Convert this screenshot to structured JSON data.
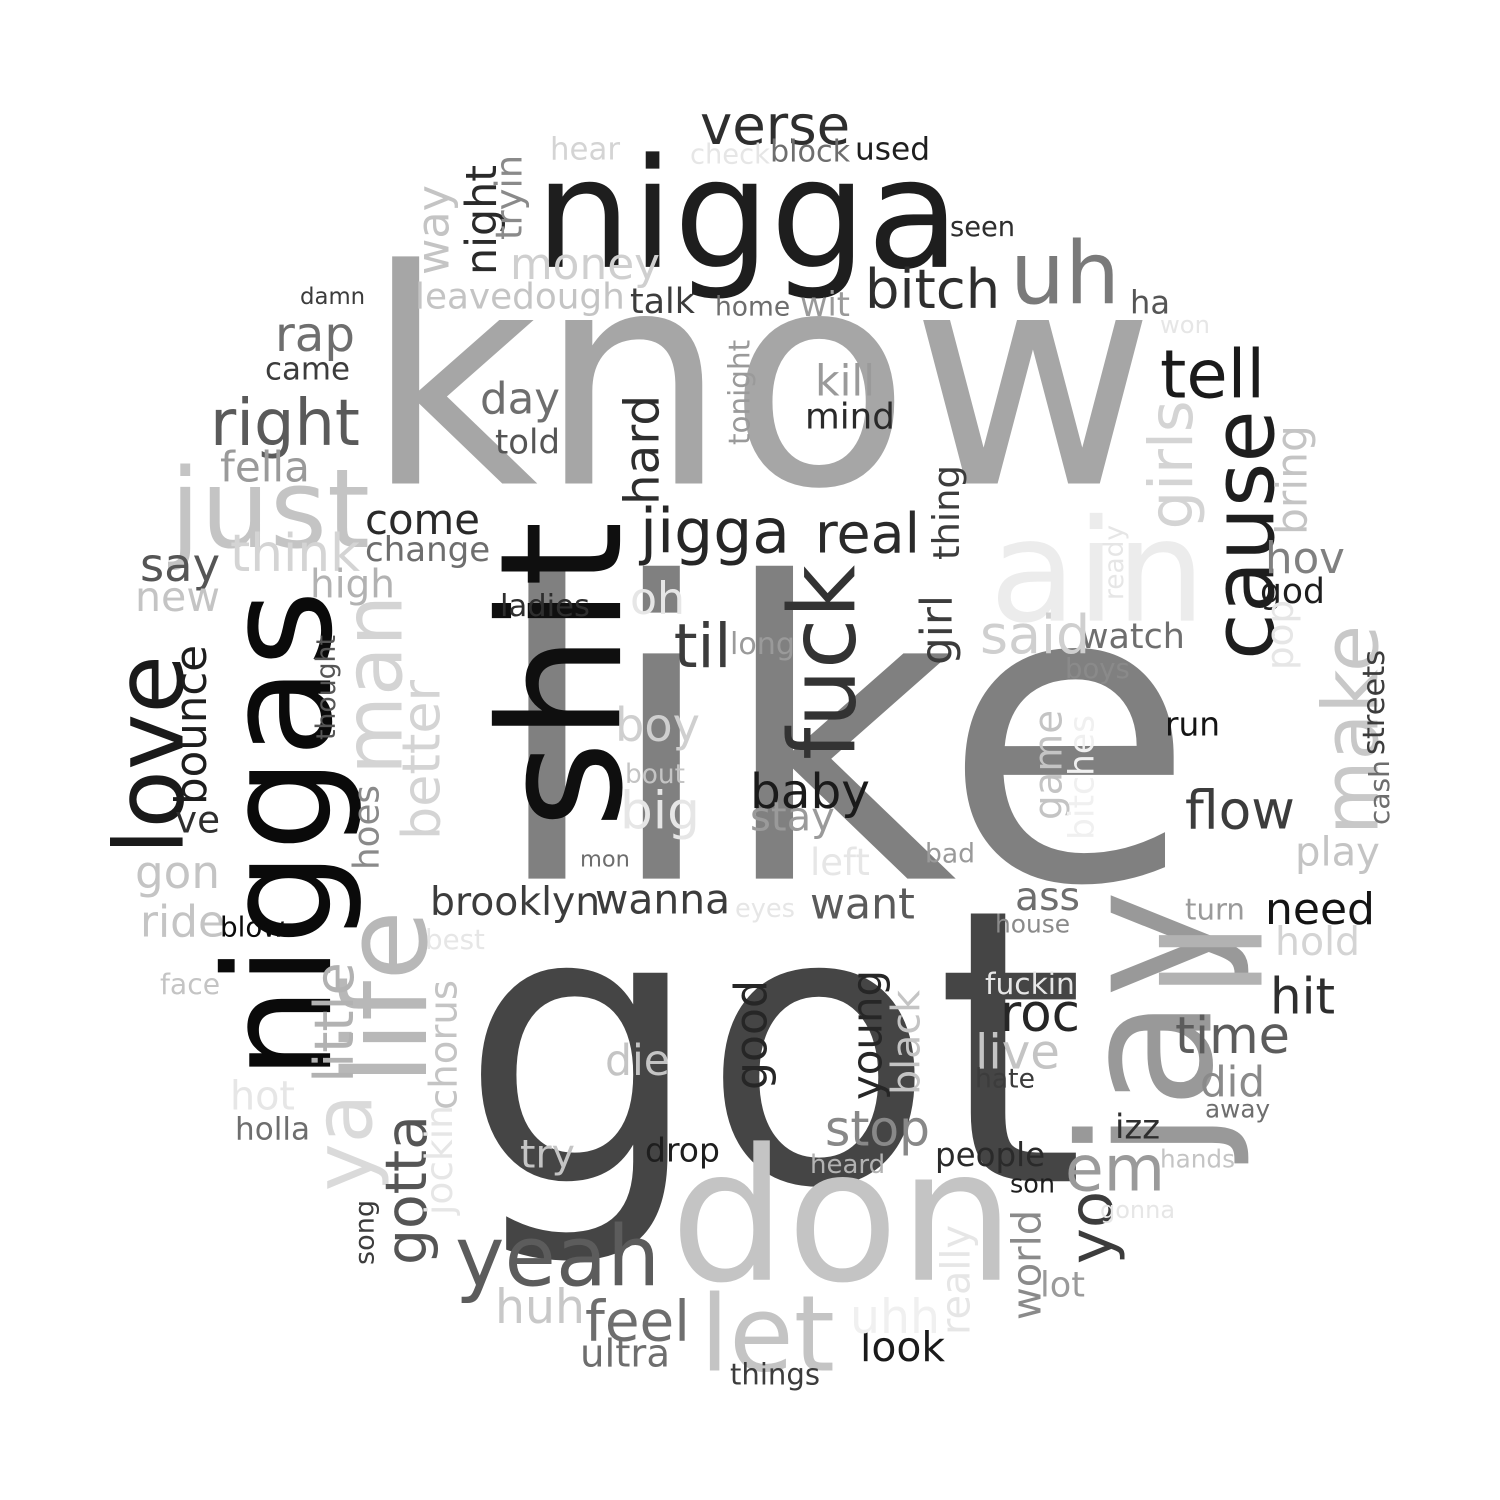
{
  "words": [
    {
      "text": "like",
      "color": "#808080",
      "rotated": false
    },
    {
      "text": "know",
      "color": "#a6a6a6",
      "rotated": false
    },
    {
      "text": "got",
      "color": "#454545",
      "rotated": false
    },
    {
      "text": "don",
      "color": "#c4c4c4",
      "rotated": false
    },
    {
      "text": "nigga",
      "color": "#1e1e1e",
      "rotated": false
    },
    {
      "text": "niggas",
      "color": "#0a0a0a",
      "rotated": true
    },
    {
      "text": "shit",
      "color": "#0f0f0f",
      "rotated": true
    },
    {
      "text": "ain",
      "color": "#ececec",
      "rotated": false
    },
    {
      "text": "jay",
      "color": "#999999",
      "rotated": true
    },
    {
      "text": "uh",
      "color": "#7a7a7a",
      "rotated": false
    },
    {
      "text": "yeah",
      "color": "#5c5c5c",
      "rotated": false
    },
    {
      "text": "just",
      "color": "#c4c4c4",
      "rotated": false
    },
    {
      "text": "fuck",
      "color": "#333333",
      "rotated": true
    },
    {
      "text": "em",
      "color": "#9a9a9a",
      "rotated": false
    },
    {
      "text": "let",
      "color": "#c4c4c4",
      "rotated": false
    },
    {
      "text": "cause",
      "color": "#1e1e1e",
      "rotated": true
    },
    {
      "text": "make",
      "color": "#c8c8c8",
      "rotated": true
    },
    {
      "text": "love",
      "color": "#1a1a1a",
      "rotated": true
    },
    {
      "text": "man",
      "color": "#d4d4d4",
      "rotated": true
    },
    {
      "text": "ya",
      "color": "#dadada",
      "rotated": true
    },
    {
      "text": "life",
      "color": "#b8b8b8",
      "rotated": true
    },
    {
      "text": "ll",
      "color": "#b2b2b2",
      "rotated": true
    },
    {
      "text": "verse",
      "color": "#2e2e2e",
      "rotated": false
    },
    {
      "text": "money",
      "color": "#cfcfcf",
      "rotated": false
    },
    {
      "text": "jigga",
      "color": "#262626",
      "rotated": false
    },
    {
      "text": "bitch",
      "color": "#2e2e2e",
      "rotated": false
    },
    {
      "text": "right",
      "color": "#5a5a5a",
      "rotated": false
    },
    {
      "text": "come",
      "color": "#2a2a2a",
      "rotated": false
    },
    {
      "text": "real",
      "color": "#2a2a2a",
      "rotated": false
    },
    {
      "text": "baby",
      "color": "#1a1a1a",
      "rotated": false
    },
    {
      "text": "time",
      "color": "#5c5c5c",
      "rotated": false
    },
    {
      "text": "tell",
      "color": "#1a1a1a",
      "rotated": false
    },
    {
      "text": "good",
      "color": "#262626",
      "rotated": true
    },
    {
      "text": "flow",
      "color": "#3c3c3c",
      "rotated": false
    },
    {
      "text": "want",
      "color": "#5a5a5a",
      "rotated": false
    },
    {
      "text": "wanna",
      "color": "#3c3c3c",
      "rotated": false
    },
    {
      "text": "need",
      "color": "#141414",
      "rotated": false
    },
    {
      "text": "day",
      "color": "#6e6e6e",
      "rotated": false
    },
    {
      "text": "rap",
      "color": "#6e6e6e",
      "rotated": false
    },
    {
      "text": "hard",
      "color": "#2e2e2e",
      "rotated": true
    },
    {
      "text": "think",
      "color": "#d4d4d4",
      "rotated": false
    },
    {
      "text": "say",
      "color": "#555555",
      "rotated": false
    },
    {
      "text": "bounce",
      "color": "#1e1e1e",
      "rotated": true
    },
    {
      "text": "gotta",
      "color": "#555555",
      "rotated": true
    },
    {
      "text": "young",
      "color": "#262626",
      "rotated": true
    },
    {
      "text": "hov",
      "color": "#808080",
      "rotated": false
    },
    {
      "text": "roc",
      "color": "#262626",
      "rotated": false
    },
    {
      "text": "stop",
      "color": "#888888",
      "rotated": false
    },
    {
      "text": "boy",
      "color": "#cfcfcf",
      "rotated": false
    },
    {
      "text": "big",
      "color": "#e6e6e6",
      "rotated": false
    },
    {
      "text": "feel",
      "color": "#6e6e6e",
      "rotated": false
    },
    {
      "text": "huh",
      "color": "#c8c8c8",
      "rotated": false
    },
    {
      "text": "brooklyn",
      "color": "#3c3c3c",
      "rotated": false
    },
    {
      "text": "mind",
      "color": "#2a2a2a",
      "rotated": false
    },
    {
      "text": "watch",
      "color": "#6e6e6e",
      "rotated": false
    },
    {
      "text": "said",
      "color": "#cfcfcf",
      "rotated": false
    },
    {
      "text": "change",
      "color": "#6e6e6e",
      "rotated": false
    },
    {
      "text": "girls",
      "color": "#d4d4d4",
      "rotated": true
    },
    {
      "text": "new",
      "color": "#c4c4c4",
      "rotated": false
    },
    {
      "text": "gon",
      "color": "#c4c4c4",
      "rotated": false
    },
    {
      "text": "yo",
      "color": "#3c3c3c",
      "rotated": true
    },
    {
      "text": "better",
      "color": "#d4d4d4",
      "rotated": true
    },
    {
      "text": "live",
      "color": "#c4c4c4",
      "rotated": false
    },
    {
      "text": "black",
      "color": "#c4c4c4",
      "rotated": true
    },
    {
      "text": "little",
      "color": "#b2b2b2",
      "rotated": true
    },
    {
      "text": "chorus",
      "color": "#c4c4c4",
      "rotated": true
    },
    {
      "text": "high",
      "color": "#b2b2b2",
      "rotated": false
    },
    {
      "text": "way",
      "color": "#c4c4c4",
      "rotated": true
    },
    {
      "text": "night",
      "color": "#2a2a2a",
      "rotated": true
    },
    {
      "text": "leavedough",
      "color": "#c4c4c4",
      "rotated": false
    },
    {
      "text": "stay",
      "color": "#9a9a9a",
      "rotated": false
    },
    {
      "text": "look",
      "color": "#1a1a1a",
      "rotated": false
    },
    {
      "text": "did",
      "color": "#8a8a8a",
      "rotated": false
    },
    {
      "text": "oh",
      "color": "#e6e6e6",
      "rotated": false
    },
    {
      "text": "came",
      "color": "#3c3c3c",
      "rotated": false
    },
    {
      "text": "ride",
      "color": "#c4c4c4",
      "rotated": false
    },
    {
      "text": "game",
      "color": "#c4c4c4",
      "rotated": true
    },
    {
      "text": "play",
      "color": "#c4c4c4",
      "rotated": false
    },
    {
      "text": "hold",
      "color": "#d4d4d4",
      "rotated": false
    },
    {
      "text": "uhh",
      "color": "#f0f0f0",
      "rotated": false
    },
    {
      "text": "bring",
      "color": "#c4c4c4",
      "rotated": true
    },
    {
      "text": "god",
      "color": "#1e1e1e",
      "rotated": false
    },
    {
      "text": "ass",
      "color": "#6e6e6e",
      "rotated": false
    },
    {
      "text": "hit",
      "color": "#2e2e2e",
      "rotated": false
    },
    {
      "text": "die",
      "color": "#c4c4c4",
      "rotated": false
    },
    {
      "text": "til",
      "color": "#3c3c3c",
      "rotated": false
    },
    {
      "text": "home",
      "color": "#6e6e6e",
      "rotated": false
    },
    {
      "text": "world",
      "color": "#8a8a8a",
      "rotated": true
    },
    {
      "text": "people",
      "color": "#2a2a2a",
      "rotated": false
    },
    {
      "text": "drop",
      "color": "#1e1e1e",
      "rotated": false
    },
    {
      "text": "try",
      "color": "#c4c4c4",
      "rotated": false
    },
    {
      "text": "ultra",
      "color": "#6e6e6e",
      "rotated": false
    },
    {
      "text": "used",
      "color": "#1e1e1e",
      "rotated": false
    },
    {
      "text": "hear",
      "color": "#d4d4d4",
      "rotated": false
    },
    {
      "text": "thing",
      "color": "#3c3c3c",
      "rotated": true
    },
    {
      "text": "girl",
      "color": "#3c3c3c",
      "rotated": true
    },
    {
      "text": "run",
      "color": "#141414",
      "rotated": false
    },
    {
      "text": "hot",
      "color": "#e6e6e6",
      "rotated": false
    },
    {
      "text": "fella",
      "color": "#9a9a9a",
      "rotated": false
    },
    {
      "text": "told",
      "color": "#555555",
      "rotated": false
    },
    {
      "text": "hoes",
      "color": "#8a8a8a",
      "rotated": true
    },
    {
      "text": "ve",
      "color": "#2e2e2e",
      "rotated": false
    },
    {
      "text": "thought",
      "color": "#555555",
      "rotated": true
    },
    {
      "text": "streets",
      "color": "#3c3c3c",
      "rotated": true
    },
    {
      "text": "cash",
      "color": "#6e6e6e",
      "rotated": true
    },
    {
      "text": "ha",
      "color": "#555555",
      "rotated": false
    },
    {
      "text": "damn",
      "color": "#3c3c3c",
      "rotated": false
    },
    {
      "text": "talk",
      "color": "#3c3c3c",
      "rotated": false
    },
    {
      "text": "wit",
      "color": "#9a9a9a",
      "rotated": false
    },
    {
      "text": "seen",
      "color": "#2e2e2e",
      "rotated": false
    },
    {
      "text": "block",
      "color": "#6e6e6e",
      "rotated": false
    },
    {
      "text": "check",
      "color": "#e6e6e6",
      "rotated": false
    },
    {
      "text": "tryin",
      "color": "#8a8a8a",
      "rotated": true
    },
    {
      "text": "kill",
      "color": "#9a9a9a",
      "rotated": false
    },
    {
      "text": "tonight",
      "color": "#9a9a9a",
      "rotated": true
    },
    {
      "text": "won",
      "color": "#e6e6e6",
      "rotated": false
    },
    {
      "text": "ready",
      "color": "#e6e6e6",
      "rotated": true
    },
    {
      "text": "pop",
      "color": "#e6e6e6",
      "rotated": true
    },
    {
      "text": "boys",
      "color": "#8a8a8a",
      "rotated": false
    },
    {
      "text": "long",
      "color": "#9a9a9a",
      "rotated": false
    },
    {
      "text": "ladies",
      "color": "#2e2e2e",
      "rotated": false
    },
    {
      "text": "bout",
      "color": "#c4c4c4",
      "rotated": false
    },
    {
      "text": "mon",
      "color": "#6e6e6e",
      "rotated": false
    },
    {
      "text": "left",
      "color": "#e6e6e6",
      "rotated": false
    },
    {
      "text": "bad",
      "color": "#9a9a9a",
      "rotated": false
    },
    {
      "text": "bitches",
      "color": "#f0f0f0",
      "rotated": true
    },
    {
      "text": "turn",
      "color": "#9a9a9a",
      "rotated": false
    },
    {
      "text": "eyes",
      "color": "#e6e6e6",
      "rotated": false
    },
    {
      "text": "best",
      "color": "#e6e6e6",
      "rotated": false
    },
    {
      "text": "blow",
      "color": "#0a0a0a",
      "rotated": false
    },
    {
      "text": "house",
      "color": "#8a8a8a",
      "rotated": false
    },
    {
      "text": "face",
      "color": "#c4c4c4",
      "rotated": false
    },
    {
      "text": "fuckin",
      "color": "#e6e6e6",
      "rotated": false
    },
    {
      "text": "hate",
      "color": "#3c3c3c",
      "rotated": false
    },
    {
      "text": "izz",
      "color": "#2e2e2e",
      "rotated": false
    },
    {
      "text": "away",
      "color": "#6e6e6e",
      "rotated": false
    },
    {
      "text": "holla",
      "color": "#6e6e6e",
      "rotated": false
    },
    {
      "text": "jockin",
      "color": "#e6e6e6",
      "rotated": true
    },
    {
      "text": "heard",
      "color": "#b2b2b2",
      "rotated": false
    },
    {
      "text": "hands",
      "color": "#c4c4c4",
      "rotated": false
    },
    {
      "text": "son",
      "color": "#1e1e1e",
      "rotated": false
    },
    {
      "text": "song",
      "color": "#3c3c3c",
      "rotated": true
    },
    {
      "text": "gonna",
      "color": "#e6e6e6",
      "rotated": false
    },
    {
      "text": "really",
      "color": "#e6e6e6",
      "rotated": true
    },
    {
      "text": "lot",
      "color": "#9a9a9a",
      "rotated": false
    },
    {
      "text": "things",
      "color": "#3c3c3c",
      "rotated": false
    }
  ]
}
